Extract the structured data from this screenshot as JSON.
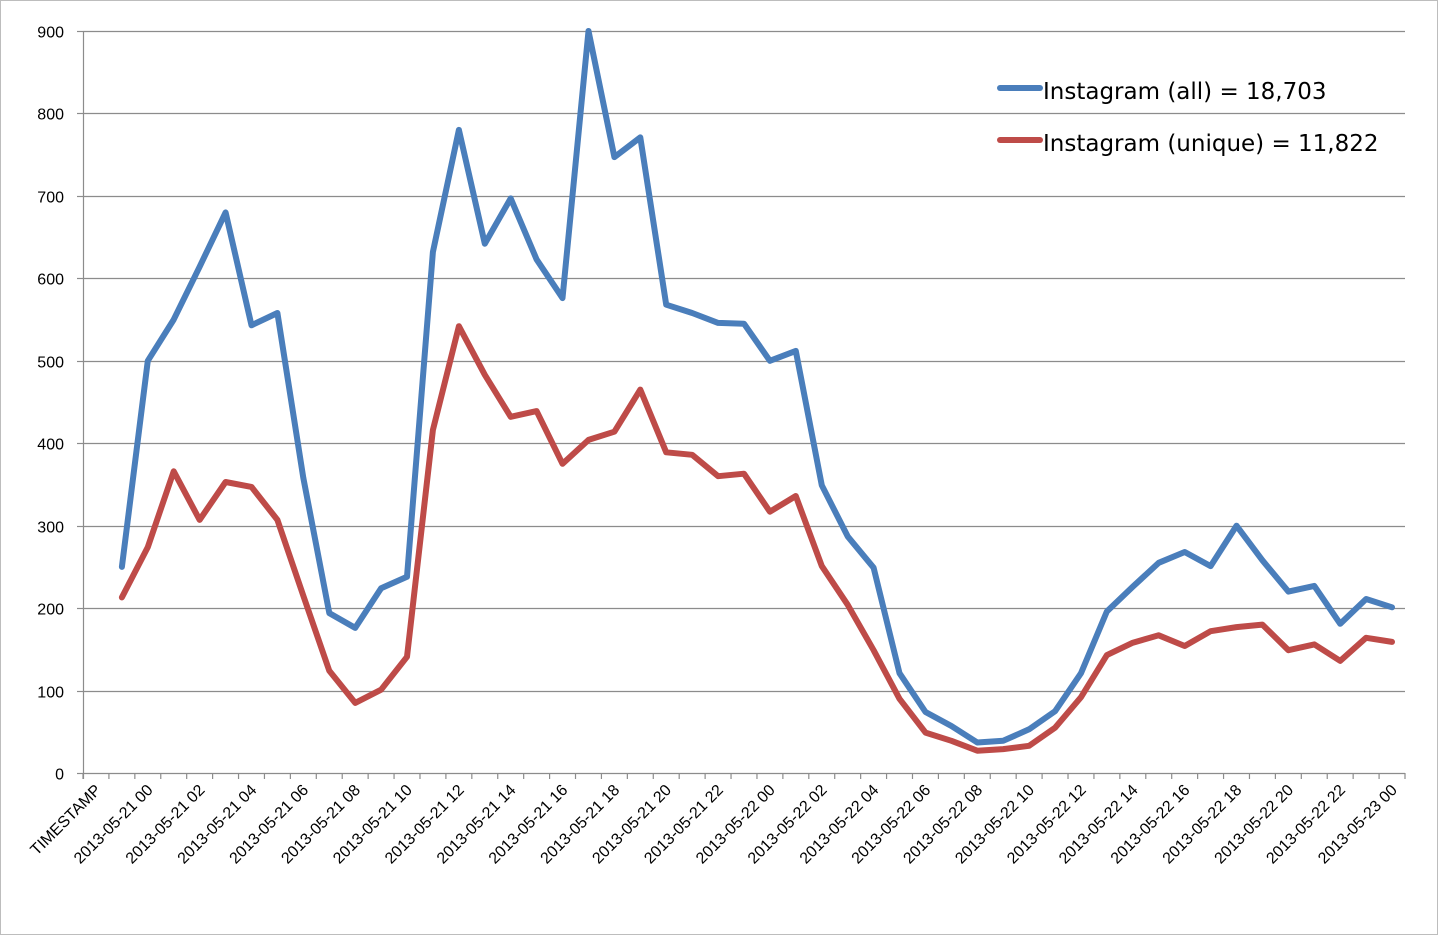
{
  "chart_data": {
    "type": "line",
    "title": "",
    "xlabel": "",
    "ylabel": "",
    "ylim": [
      0,
      900
    ],
    "yticks": [
      0,
      100,
      200,
      300,
      400,
      500,
      600,
      700,
      800,
      900
    ],
    "grid": true,
    "legend_position": "top-right",
    "category_count": 51,
    "x_tick_labels": [
      "TIMESTAMP",
      "2013-05-21 00",
      "2013-05-21 02",
      "2013-05-21 04",
      "2013-05-21 06",
      "2013-05-21 08",
      "2013-05-21 10",
      "2013-05-21 12",
      "2013-05-21 14",
      "2013-05-21 16",
      "2013-05-21 18",
      "2013-05-21 20",
      "2013-05-21 22",
      "2013-05-22 00",
      "2013-05-22 02",
      "2013-05-22 04",
      "2013-05-22 06",
      "2013-05-22 08",
      "2013-05-22 10",
      "2013-05-22 12",
      "2013-05-22 14",
      "2013-05-22 16",
      "2013-05-22 18",
      "2013-05-22 20",
      "2013-05-22 22",
      "2013-05-23 00"
    ],
    "series": [
      {
        "name": "Instagram (all) = 18,703",
        "color": "#4a7ebb",
        "values": [
          250,
          500,
          550,
          614,
          680,
          543,
          558,
          358,
          194,
          176,
          224,
          238,
          632,
          780,
          642,
          697,
          623,
          576,
          900,
          747,
          771,
          568,
          558,
          546,
          545,
          500,
          512,
          349,
          287,
          249,
          121,
          74,
          57,
          37,
          39,
          53,
          75,
          121,
          196,
          226,
          255,
          268,
          251,
          300,
          258,
          220,
          227,
          181,
          211,
          201
        ]
      },
      {
        "name": "Instagram (unique) = 11,822",
        "color": "#be4b48",
        "values": [
          213,
          274,
          366,
          307,
          353,
          347,
          307,
          215,
          124,
          85,
          101,
          141,
          416,
          542,
          483,
          432,
          439,
          375,
          404,
          414,
          465,
          389,
          386,
          360,
          363,
          317,
          336,
          251,
          204,
          149,
          90,
          49,
          39,
          27,
          29,
          33,
          55,
          92,
          143,
          158,
          167,
          154,
          172,
          177,
          180,
          149,
          156,
          136,
          164,
          159
        ]
      }
    ]
  }
}
